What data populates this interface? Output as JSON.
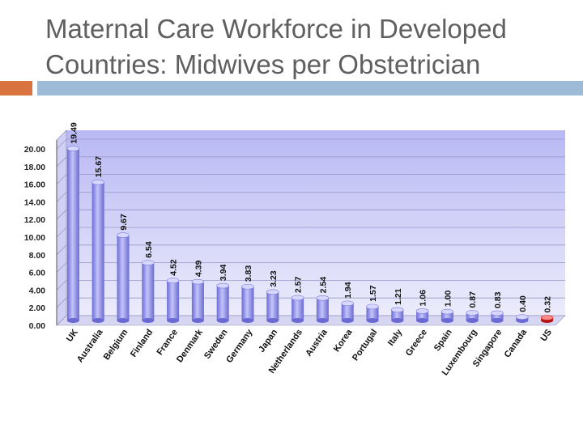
{
  "slide": {
    "title_line1": "Maternal Care Workforce in Developed",
    "title_line2": "Countries: Midwives per Obstetrician"
  },
  "colors": {
    "title": "#5f5f5f",
    "accent_orange": "#d9733f",
    "accent_blue": "#9dbad6",
    "bar": "#8c8cf2",
    "bar_highlight": "#e02a2a",
    "plot_bg_top": "#b8b8f4",
    "plot_bg_bottom": "#ececfc"
  },
  "chart_data": {
    "type": "bar",
    "title": "",
    "xlabel": "",
    "ylabel": "",
    "ylim": [
      0,
      20
    ],
    "y_ticks": [
      "0.00",
      "2.00",
      "4.00",
      "6.00",
      "8.00",
      "10.00",
      "12.00",
      "14.00",
      "16.00",
      "18.00",
      "20.00"
    ],
    "grid": true,
    "categories": [
      "UK",
      "Australia",
      "Belgium",
      "Finland",
      "France",
      "Denmark",
      "Sweden",
      "Germany",
      "Japan",
      "Netherlands",
      "Austria",
      "Korea",
      "Portugal",
      "Italy",
      "Greece",
      "Spain",
      "Luxembourg",
      "Singapore",
      "Canada",
      "US"
    ],
    "values": [
      19.49,
      15.67,
      9.67,
      6.54,
      4.52,
      4.39,
      3.94,
      3.83,
      3.23,
      2.57,
      2.54,
      1.94,
      1.57,
      1.21,
      1.06,
      1.0,
      0.87,
      0.83,
      0.4,
      0.32
    ],
    "labels": [
      "19.49",
      "15.67",
      "9.67",
      "6.54",
      "4.52",
      "4.39",
      "3.94",
      "3.83",
      "3.23",
      "2.57",
      "2.54",
      "1.94",
      "1.57",
      "1.21",
      "1.06",
      "1.00",
      "0.87",
      "0.83",
      "0.40",
      "0.32"
    ],
    "highlight": "US"
  }
}
